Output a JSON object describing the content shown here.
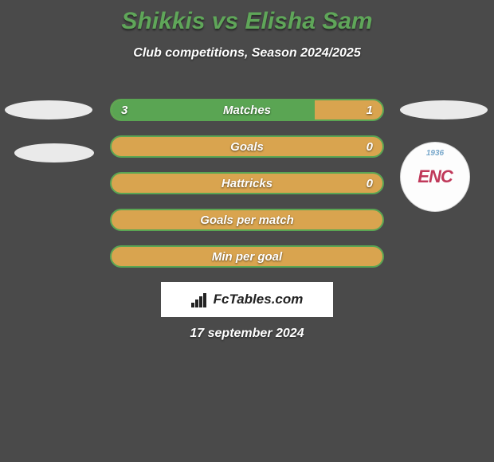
{
  "title": "Shikkis vs Elisha Sam",
  "subtitle": "Club competitions, Season 2024/2025",
  "date": "17 september 2024",
  "brand": "FcTables.com",
  "colors": {
    "background": "#4a4a4a",
    "title": "#5fa659",
    "bar_left": "#5aa553",
    "bar_right": "#d9a44f",
    "avatar": "#eaeaea",
    "text": "#ffffff"
  },
  "logo": {
    "year": "1936",
    "text": "ENC",
    "text_color": "#c0395a",
    "year_color": "#79a8cb"
  },
  "bars": [
    {
      "label": "Matches",
      "left_val": "3",
      "right_val": "1",
      "left_pct": 75
    },
    {
      "label": "Goals",
      "left_val": "",
      "right_val": "0",
      "left_pct": 0
    },
    {
      "label": "Hattricks",
      "left_val": "",
      "right_val": "0",
      "left_pct": 0
    },
    {
      "label": "Goals per match",
      "left_val": "",
      "right_val": "",
      "left_pct": 0
    },
    {
      "label": "Min per goal",
      "left_val": "",
      "right_val": "",
      "left_pct": 0
    }
  ],
  "bar_style": {
    "height": 28,
    "border_radius": 14,
    "gap": 18,
    "label_fontsize": 15,
    "border_width": 2
  }
}
